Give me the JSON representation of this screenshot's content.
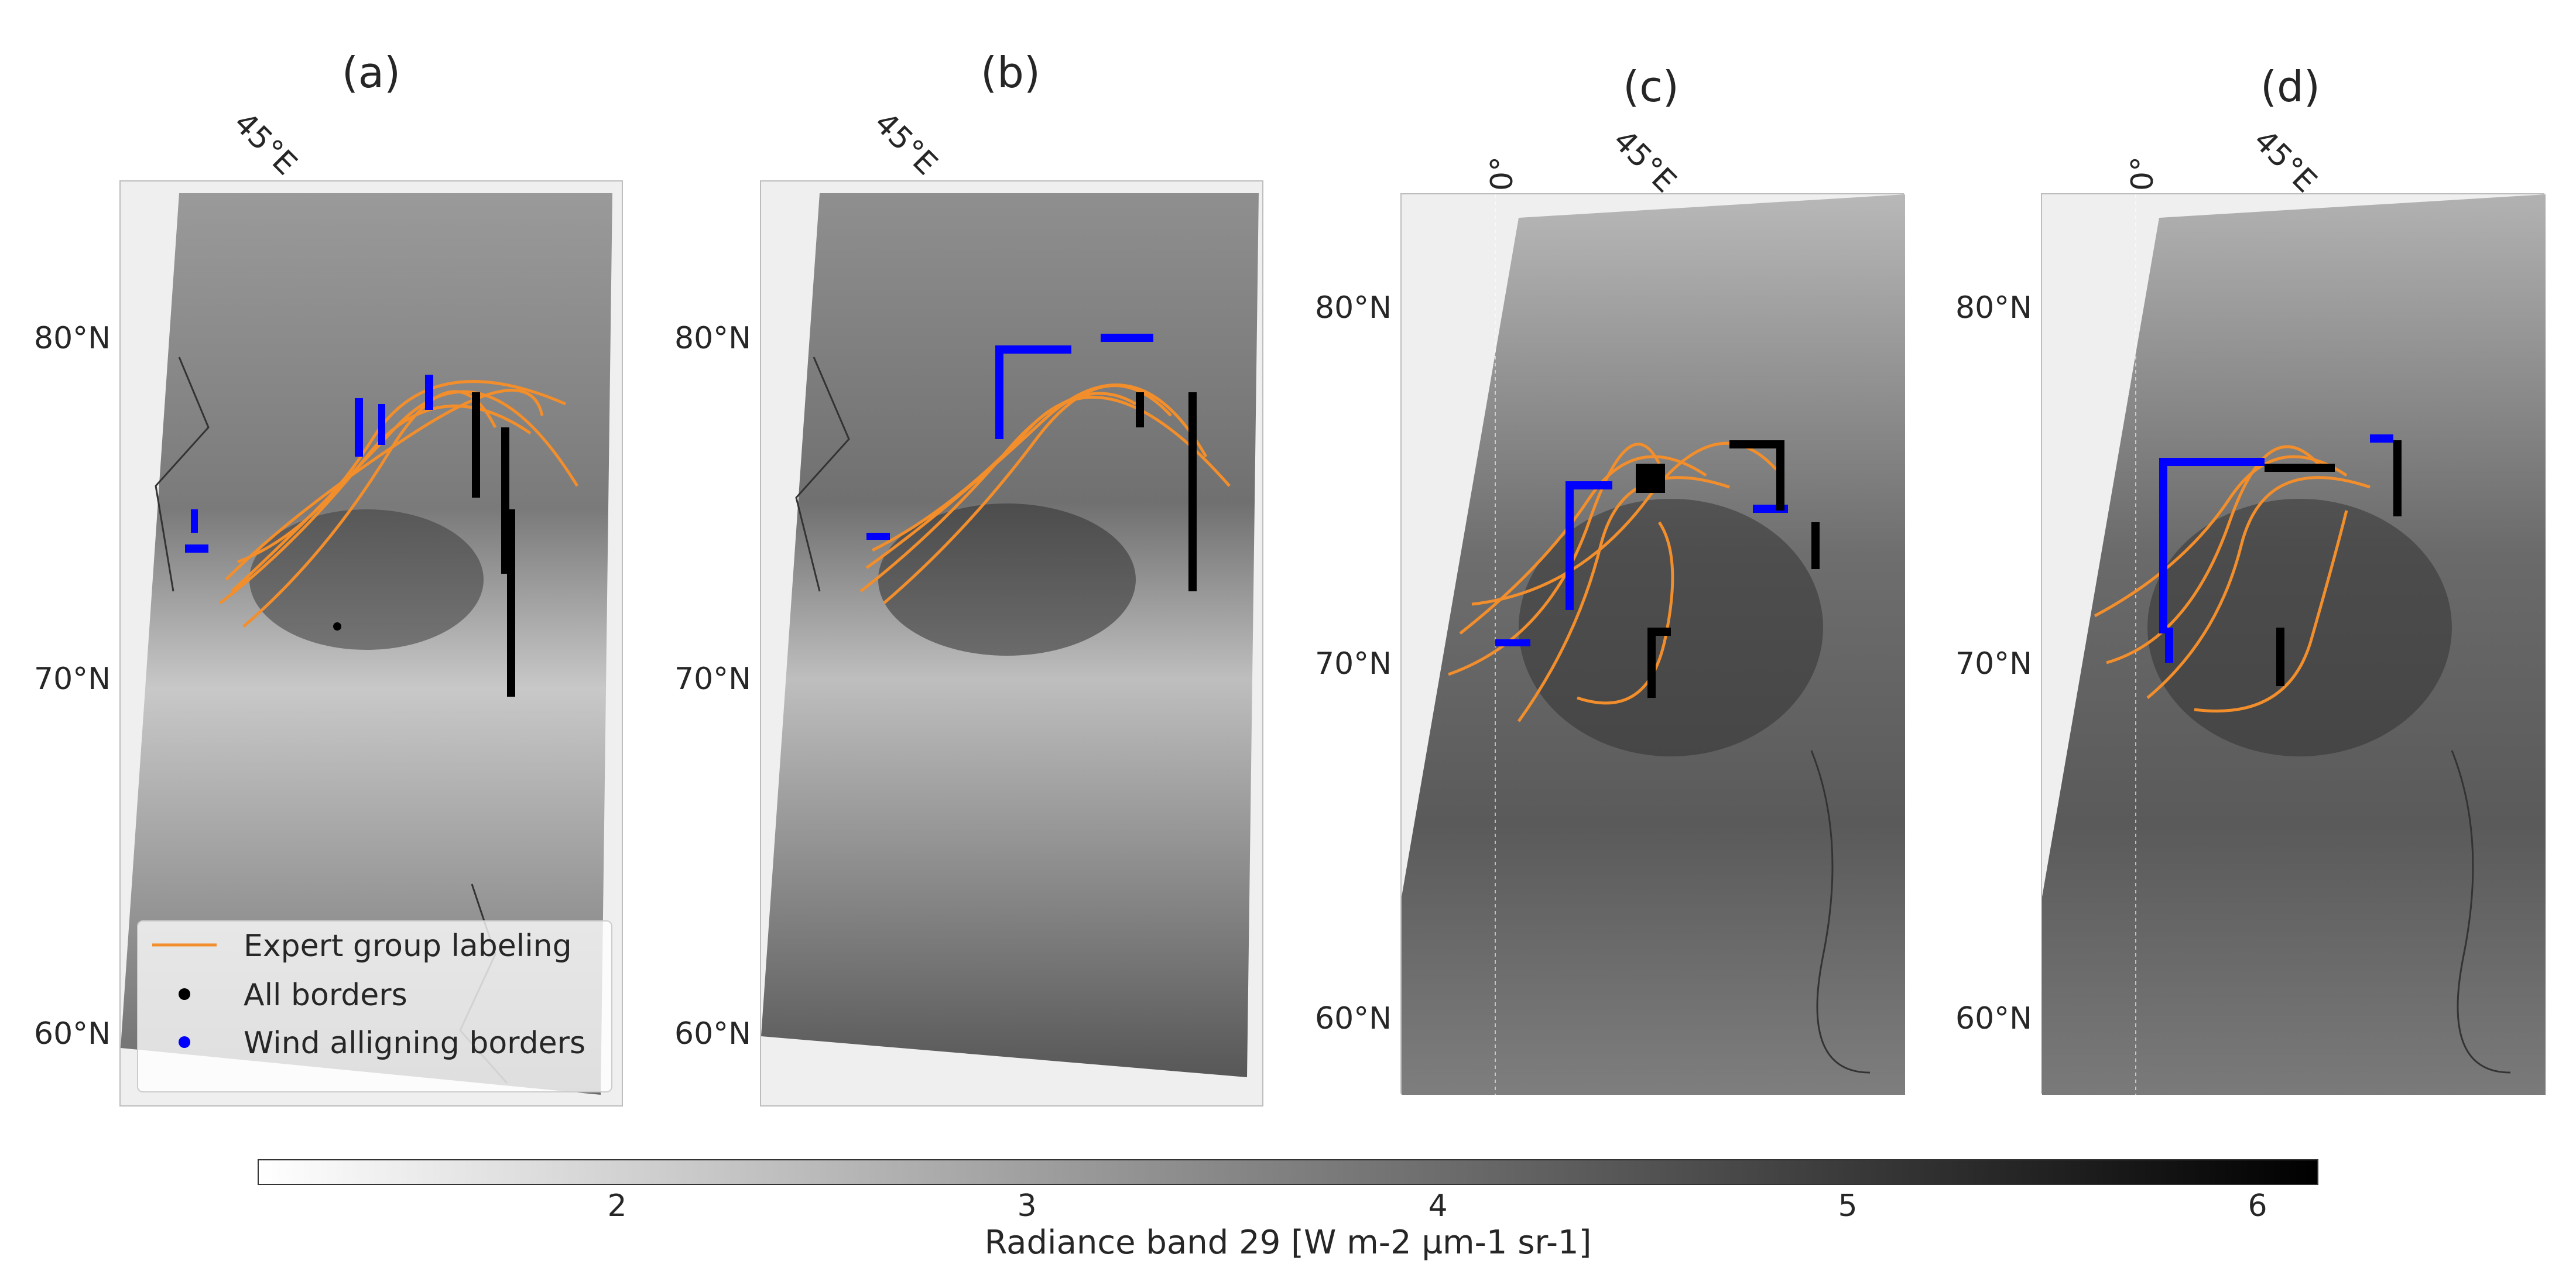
{
  "panels": [
    {
      "title": "(a)",
      "lon_labels": [
        "45°E"
      ],
      "lat_labels": [
        "80°N",
        "70°N",
        "60°N"
      ]
    },
    {
      "title": "(b)",
      "lon_labels": [
        "45°E"
      ],
      "lat_labels": [
        "80°N",
        "70°N",
        "60°N"
      ]
    },
    {
      "title": "(c)",
      "lon_labels": [
        "0°",
        "45°E"
      ],
      "lat_labels": [
        "80°N",
        "70°N",
        "60°N"
      ]
    },
    {
      "title": "(d)",
      "lon_labels": [
        "0°",
        "45°E"
      ],
      "lat_labels": [
        "80°N",
        "70°N",
        "60°N"
      ]
    }
  ],
  "legend": {
    "items": [
      {
        "label": "Expert group labeling",
        "color": "#f28e2b",
        "marker": "line"
      },
      {
        "label": "All borders",
        "color": "#000000",
        "marker": "dot"
      },
      {
        "label": "Wind alligning borders",
        "color": "#0000ff",
        "marker": "dot"
      }
    ]
  },
  "colorbar": {
    "label": "Radiance band 29 [W m-2 µm-1 sr-1]",
    "ticks": [
      "2",
      "3",
      "4",
      "5",
      "6"
    ],
    "range": [
      1.1,
      6.15
    ],
    "colormap": "greys"
  },
  "colors": {
    "expert": "#f28e2b",
    "all_borders": "#000000",
    "wind_borders": "#0000ff"
  }
}
